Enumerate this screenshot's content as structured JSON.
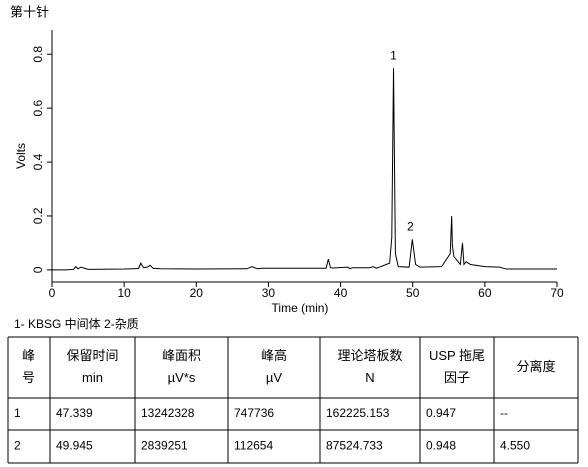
{
  "title": "第十针",
  "chart_data": {
    "type": "line",
    "color": "#000000",
    "x": [
      0,
      2,
      3,
      3.3,
      3.6,
      4,
      5,
      10,
      12,
      12.3,
      12.7,
      13.2,
      13.6,
      14,
      15,
      20,
      27,
      27.7,
      28.5,
      29,
      31,
      38,
      38.3,
      38.6,
      39,
      41,
      41.3,
      41.6,
      44,
      44.5,
      45,
      46.8,
      47.1,
      47.34,
      47.6,
      48,
      49.5,
      49.945,
      50.4,
      51,
      54,
      55.2,
      55.4,
      55.5,
      55.7,
      56,
      56.6,
      56.9,
      57.1,
      57.4,
      58,
      60,
      62,
      63,
      70
    ],
    "values": [
      0,
      0,
      0.002,
      0.012,
      0.004,
      0.01,
      0.002,
      0.003,
      0.005,
      0.025,
      0.008,
      0.01,
      0.017,
      0.006,
      0.004,
      0.003,
      0.004,
      0.012,
      0.004,
      0.006,
      0.006,
      0.006,
      0.04,
      0.008,
      0.007,
      0.01,
      0.004,
      0.008,
      0.008,
      0.012,
      0.006,
      0.025,
      0.12,
      0.748,
      0.06,
      0.012,
      0.01,
      0.113,
      0.02,
      0.01,
      0.012,
      0.06,
      0.2,
      0.09,
      0.05,
      0.04,
      0.02,
      0.1,
      0.02,
      0.03,
      0.02,
      0.012,
      0.01,
      0.003,
      0.003
    ],
    "xlim": [
      0,
      70
    ],
    "xticks": [
      0,
      10,
      20,
      30,
      40,
      50,
      60,
      70
    ],
    "ylim": [
      -0.045,
      0.89
    ],
    "yticks": [
      0,
      0.2,
      0.4,
      0.6,
      0.8
    ],
    "x_label": "Time (min)",
    "y_label": "Volts",
    "annotations": [
      {
        "text": "1",
        "x": 47.34,
        "y": 0.748
      },
      {
        "text": "2",
        "x": 49.945,
        "y": 0.113
      }
    ]
  },
  "legend_note": "1- KBSG 中间体    2-杂质",
  "table": {
    "header": [
      [
        "峰",
        "号"
      ],
      [
        "保留时间",
        "min"
      ],
      [
        "峰面积",
        "µV*s"
      ],
      [
        "峰高",
        "µV"
      ],
      [
        "理论塔板数",
        "N"
      ],
      [
        "USP 拖尾",
        "因子"
      ],
      [
        "分离度"
      ]
    ],
    "rows": [
      [
        "1",
        "47.339",
        "13242328",
        "747736",
        "162225.153",
        "0.947",
        "--"
      ],
      [
        "2",
        "49.945",
        "2839251",
        "112654",
        "87524.733",
        "0.948",
        "4.550"
      ]
    ]
  }
}
